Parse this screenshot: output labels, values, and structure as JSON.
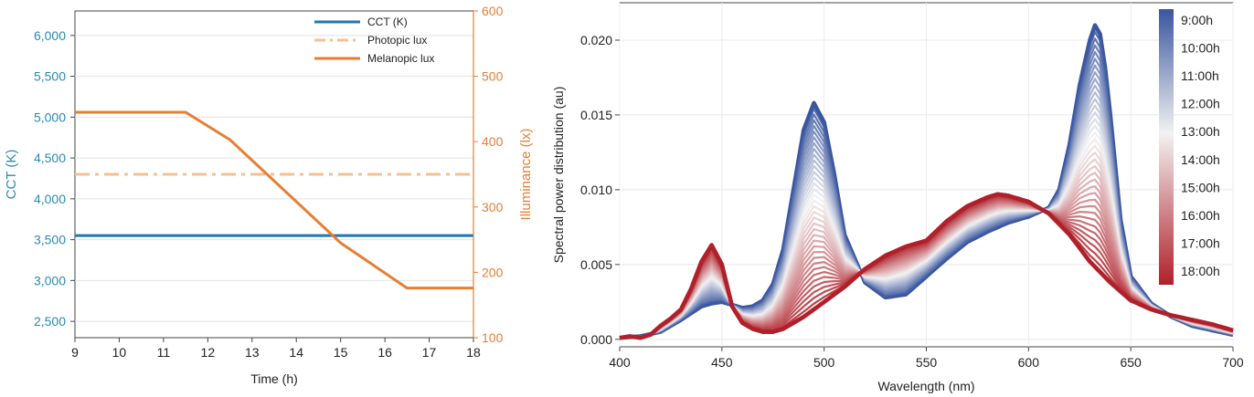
{
  "chart_data": [
    {
      "type": "line",
      "xlabel": "Time (h)",
      "ylabel_left": "CCT (K)",
      "ylabel_right": "Illuminance (lx)",
      "xlim": [
        9,
        18
      ],
      "ylim_left": [
        2300,
        6300
      ],
      "ylim_right": [
        100,
        600
      ],
      "x_ticks": [
        "9",
        "10",
        "11",
        "12",
        "13",
        "14",
        "15",
        "16",
        "17",
        "18"
      ],
      "y_ticks_left": [
        "2,500",
        "3,000",
        "3,500",
        "4,000",
        "4,500",
        "5,000",
        "5,500",
        "6,000"
      ],
      "y_ticks_right": [
        "100",
        "200",
        "300",
        "400",
        "500",
        "600"
      ],
      "grid": true,
      "legend_position": "top-right",
      "series": [
        {
          "name": "CCT (K)",
          "axis": "left",
          "color": "#1f77b4",
          "style": "solid",
          "x": [
            9,
            18
          ],
          "y": [
            3550,
            3550
          ]
        },
        {
          "name": "Photopic lux",
          "axis": "right",
          "color": "#f5bf90",
          "style": "dashdot",
          "x": [
            9,
            18
          ],
          "y": [
            350,
            350
          ]
        },
        {
          "name": "Melanopic lux",
          "axis": "right",
          "color": "#e67e34",
          "style": "solid",
          "x": [
            9,
            11.5,
            12.5,
            15,
            16.5,
            18
          ],
          "y": [
            445,
            445,
            403,
            245,
            176,
            176
          ]
        }
      ]
    },
    {
      "type": "line",
      "xlabel": "Wavelength (nm)",
      "ylabel": "Spectral power distribution (au)",
      "xlim": [
        400,
        700
      ],
      "ylim": [
        -0.0005,
        0.0225
      ],
      "x_ticks": [
        "400",
        "450",
        "500",
        "550",
        "600",
        "650",
        "700"
      ],
      "y_ticks": [
        "0.000",
        "0.005",
        "0.010",
        "0.015",
        "0.020"
      ],
      "grid": true,
      "legend_position": "right",
      "colorbar": {
        "labels": [
          "9:00h",
          "10:00h",
          "11:00h",
          "12:00h",
          "13:00h",
          "14:00h",
          "15:00h",
          "16:00h",
          "17:00h",
          "18:00h"
        ],
        "color_start": "#3a56a0",
        "color_mid": "#f2f2f2",
        "color_end": "#b0202a"
      },
      "series": [
        {
          "name": "9:00h",
          "x": [
            400,
            410,
            420,
            430,
            440,
            445,
            450,
            455,
            460,
            465,
            470,
            475,
            480,
            485,
            490,
            495,
            500,
            505,
            510,
            520,
            530,
            540,
            550,
            560,
            570,
            580,
            590,
            600,
            610,
            615,
            620,
            625,
            630,
            633,
            636,
            640,
            645,
            650,
            660,
            670,
            680,
            690,
            700
          ],
          "y": [
            0.0001,
            0.0002,
            0.0005,
            0.0013,
            0.0022,
            0.0024,
            0.0025,
            0.0023,
            0.0021,
            0.0022,
            0.0026,
            0.0037,
            0.006,
            0.01,
            0.014,
            0.0158,
            0.0145,
            0.011,
            0.007,
            0.0038,
            0.0028,
            0.003,
            0.0042,
            0.0054,
            0.0065,
            0.0072,
            0.0078,
            0.0082,
            0.0088,
            0.01,
            0.013,
            0.017,
            0.02,
            0.0212,
            0.02,
            0.015,
            0.008,
            0.0042,
            0.0024,
            0.0015,
            0.0009,
            0.0006,
            0.0003
          ]
        },
        {
          "name": "18:00h",
          "x": [
            400,
            405,
            410,
            415,
            420,
            425,
            430,
            435,
            440,
            445,
            450,
            455,
            460,
            465,
            470,
            475,
            480,
            490,
            500,
            510,
            520,
            530,
            540,
            550,
            560,
            570,
            580,
            585,
            590,
            600,
            610,
            620,
            630,
            640,
            650,
            660,
            670,
            680,
            690,
            700
          ],
          "y": [
            0.0001,
            0.0002,
            0.0001,
            0.0003,
            0.0009,
            0.0014,
            0.002,
            0.0034,
            0.0052,
            0.0063,
            0.005,
            0.0022,
            0.0011,
            0.0007,
            0.0005,
            0.0005,
            0.0007,
            0.0015,
            0.0025,
            0.0035,
            0.0047,
            0.0056,
            0.0062,
            0.0066,
            0.0079,
            0.0089,
            0.0095,
            0.0097,
            0.0096,
            0.0092,
            0.0084,
            0.007,
            0.0052,
            0.0038,
            0.0026,
            0.002,
            0.0016,
            0.0013,
            0.001,
            0.0006
          ]
        }
      ]
    }
  ]
}
